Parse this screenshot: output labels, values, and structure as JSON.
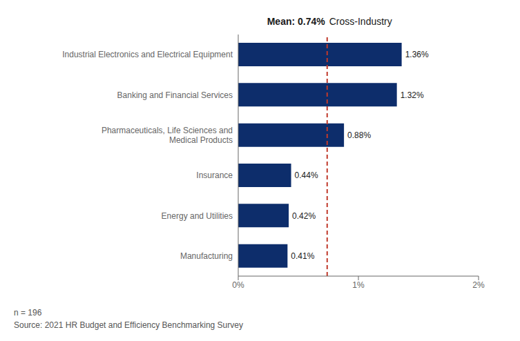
{
  "chart_data": {
    "type": "bar",
    "orientation": "horizontal",
    "title": "Cross-Industry",
    "categories": [
      "Manufacturing",
      "Energy and Utilities",
      "Insurance",
      "Pharmaceuticals, Life Sciences and\nMedical Products",
      "Banking and Financial Services",
      "Industrial Electronics and Electrical Equipment"
    ],
    "values": [
      0.41,
      0.42,
      0.44,
      0.88,
      1.32,
      1.36
    ],
    "value_labels": [
      "0.41%",
      "0.42%",
      "0.44%",
      "0.88%",
      "1.32%",
      "1.36%"
    ],
    "data_labels": true,
    "color": "#0d2d6b",
    "mean_line": {
      "value": 0.74,
      "label": "Mean: 0.74%",
      "color": "#c0392b"
    },
    "xlim": [
      0,
      2.0
    ],
    "xticks": [
      {
        "value": 0,
        "label": "0%"
      },
      {
        "value": 1.0,
        "label": "1%"
      },
      {
        "value": 2.0,
        "label": "2%"
      }
    ],
    "grid": false,
    "annotations": [
      "n = 196",
      "Source: 2021 HR Budget and Efficiency Benchmarking Survey"
    ]
  }
}
